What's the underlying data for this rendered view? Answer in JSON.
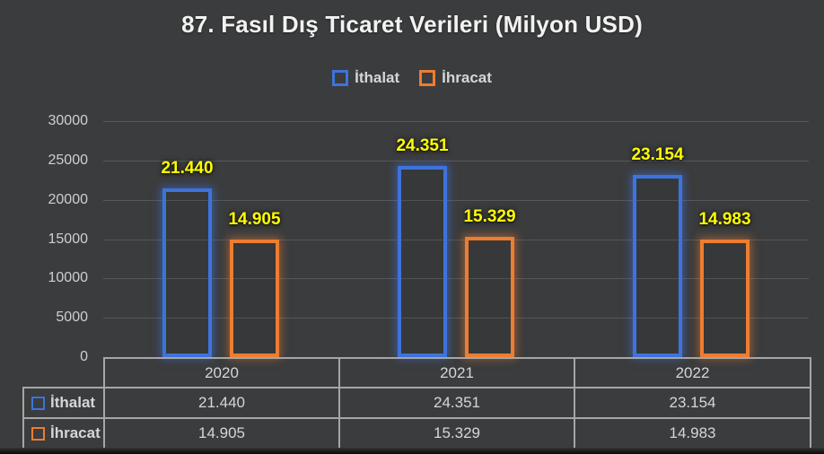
{
  "title": "87. Fasıl Dış Ticaret Verileri (Milyon USD)",
  "colors": {
    "background": "#3b3c3d",
    "grid": "#56585a",
    "axis_text": "#cfcfcf",
    "table_border": "#a6a6a6",
    "table_text": "#d6d6d6",
    "title_text": "#f2f2f2",
    "data_label": "#ffff00",
    "series_blue": "#3e73dc",
    "series_orange": "#ed7d31"
  },
  "chart_data": {
    "type": "bar",
    "title": "87. Fasıl Dış Ticaret Verileri (Milyon USD)",
    "categories": [
      "2020",
      "2021",
      "2022"
    ],
    "series": [
      {
        "name": "İthalat",
        "color": "#3e73dc",
        "values": [
          21440,
          24351,
          23154
        ],
        "display": [
          "21.440",
          "24.351",
          "23.154"
        ]
      },
      {
        "name": "İhracat",
        "color": "#ed7d31",
        "values": [
          14905,
          15329,
          14983
        ],
        "display": [
          "14.905",
          "15.329",
          "14.983"
        ]
      }
    ],
    "ylim": [
      0,
      30000
    ],
    "ytick_step": 5000,
    "yticks": [
      "30000",
      "25000",
      "20000",
      "15000",
      "10000",
      "5000",
      "0"
    ],
    "xlabel": "",
    "ylabel": "",
    "grid": true,
    "legend_position": "top",
    "data_label_color": "#ffff00",
    "bar_style": "outlined-hollow",
    "data_table_shown": true
  }
}
